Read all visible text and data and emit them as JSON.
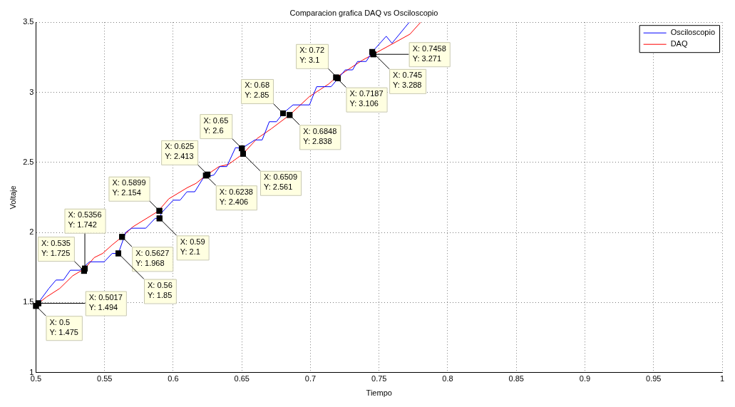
{
  "chart_data": {
    "type": "line",
    "title": "Comparacion grafica DAQ vs Osciloscopio",
    "xlabel": "Tiempo",
    "ylabel": "Voltaje",
    "xlim": [
      0.5,
      1
    ],
    "xticks": [
      0.5,
      0.55,
      0.6,
      0.65,
      0.7,
      0.75,
      0.8,
      0.85,
      0.9,
      0.95,
      1
    ],
    "ylim": [
      1,
      3.5
    ],
    "yticks": [
      1,
      1.5,
      2,
      2.5,
      3,
      3.5
    ],
    "grid": true,
    "legend": "top right",
    "marker": "none",
    "line_style": "solid",
    "series": [
      {
        "name": "Osciloscopio",
        "color": "#0000ff",
        "x": [
          0.5,
          0.5094,
          0.5146,
          0.52,
          0.525,
          0.532,
          0.539,
          0.5497,
          0.5555,
          0.56,
          0.5654,
          0.5696,
          0.58,
          0.5868,
          0.59,
          0.5915,
          0.6,
          0.605,
          0.61,
          0.6157,
          0.622,
          0.6297,
          0.6339,
          0.639,
          0.6454,
          0.65,
          0.6595,
          0.6648,
          0.67,
          0.6752,
          0.68,
          0.6873,
          0.6993,
          0.7045,
          0.715,
          0.7254,
          0.7307,
          0.7343,
          0.7406,
          0.745,
          0.7552,
          0.7594,
          0.772
        ],
        "values": [
          1.475,
          1.6,
          1.66,
          1.66,
          1.73,
          1.73,
          1.79,
          1.79,
          1.85,
          1.85,
          2.0,
          2.03,
          2.03,
          2.1,
          2.1,
          2.14,
          2.23,
          2.23,
          2.29,
          2.29,
          2.39,
          2.41,
          2.47,
          2.47,
          2.605,
          2.6,
          2.66,
          2.66,
          2.79,
          2.79,
          2.85,
          2.91,
          2.91,
          3.04,
          3.04,
          3.16,
          3.16,
          3.22,
          3.22,
          3.288,
          3.4,
          3.35,
          3.5
        ]
      },
      {
        "name": "DAQ",
        "color": "#ff0000",
        "x": [
          0.5017,
          0.5078,
          0.5173,
          0.5267,
          0.5356,
          0.5424,
          0.5486,
          0.5554,
          0.5627,
          0.5706,
          0.5889,
          0.5968,
          0.6104,
          0.6166,
          0.6238,
          0.6334,
          0.6402,
          0.6509,
          0.6611,
          0.6715,
          0.6848,
          0.6993,
          0.7134,
          0.7187,
          0.738,
          0.7458,
          0.7605,
          0.7725,
          0.7803
        ],
        "values": [
          1.494,
          1.54,
          1.6,
          1.69,
          1.742,
          1.82,
          1.85,
          1.91,
          1.968,
          2.04,
          2.15,
          2.24,
          2.32,
          2.35,
          2.406,
          2.47,
          2.485,
          2.561,
          2.67,
          2.74,
          2.838,
          2.97,
          3.06,
          3.106,
          3.23,
          3.271,
          3.35,
          3.415,
          3.5
        ]
      }
    ],
    "annotations": [
      {
        "text": "X: 0.5\nY: 1.475",
        "x": 0.5,
        "y": 1.475
      },
      {
        "text": "X: 0.5017\nY: 1.494",
        "x": 0.5017,
        "y": 1.494
      },
      {
        "text": "X: 0.535\nY: 1.725",
        "x": 0.535,
        "y": 1.725
      },
      {
        "text": "X: 0.5356\nY: 1.742",
        "x": 0.5356,
        "y": 1.742
      },
      {
        "text": "X: 0.5627\nY: 1.968",
        "x": 0.5627,
        "y": 1.968
      },
      {
        "text": "X: 0.56\nY: 1.85",
        "x": 0.56,
        "y": 1.85
      },
      {
        "text": "X: 0.5899\nY: 2.154",
        "x": 0.5899,
        "y": 2.154
      },
      {
        "text": "X: 0.59\nY: 2.1",
        "x": 0.59,
        "y": 2.1
      },
      {
        "text": "X: 0.625\nY: 2.413",
        "x": 0.625,
        "y": 2.413
      },
      {
        "text": "X: 0.6238\nY: 2.406",
        "x": 0.6238,
        "y": 2.406
      },
      {
        "text": "X: 0.65\nY: 2.6",
        "x": 0.65,
        "y": 2.6
      },
      {
        "text": "X: 0.6509\nY: 2.561",
        "x": 0.6509,
        "y": 2.561
      },
      {
        "text": "X: 0.68\nY: 2.85",
        "x": 0.68,
        "y": 2.85
      },
      {
        "text": "X: 0.6848\nY: 2.838",
        "x": 0.6848,
        "y": 2.838
      },
      {
        "text": "X: 0.72\nY: 3.1",
        "x": 0.72,
        "y": 3.1
      },
      {
        "text": "X: 0.7187\nY: 3.106",
        "x": 0.7187,
        "y": 3.106
      },
      {
        "text": "X: 0.745\nY: 3.288",
        "x": 0.745,
        "y": 3.288
      },
      {
        "text": "X: 0.7458\nY: 3.271",
        "x": 0.7458,
        "y": 3.271
      }
    ]
  }
}
